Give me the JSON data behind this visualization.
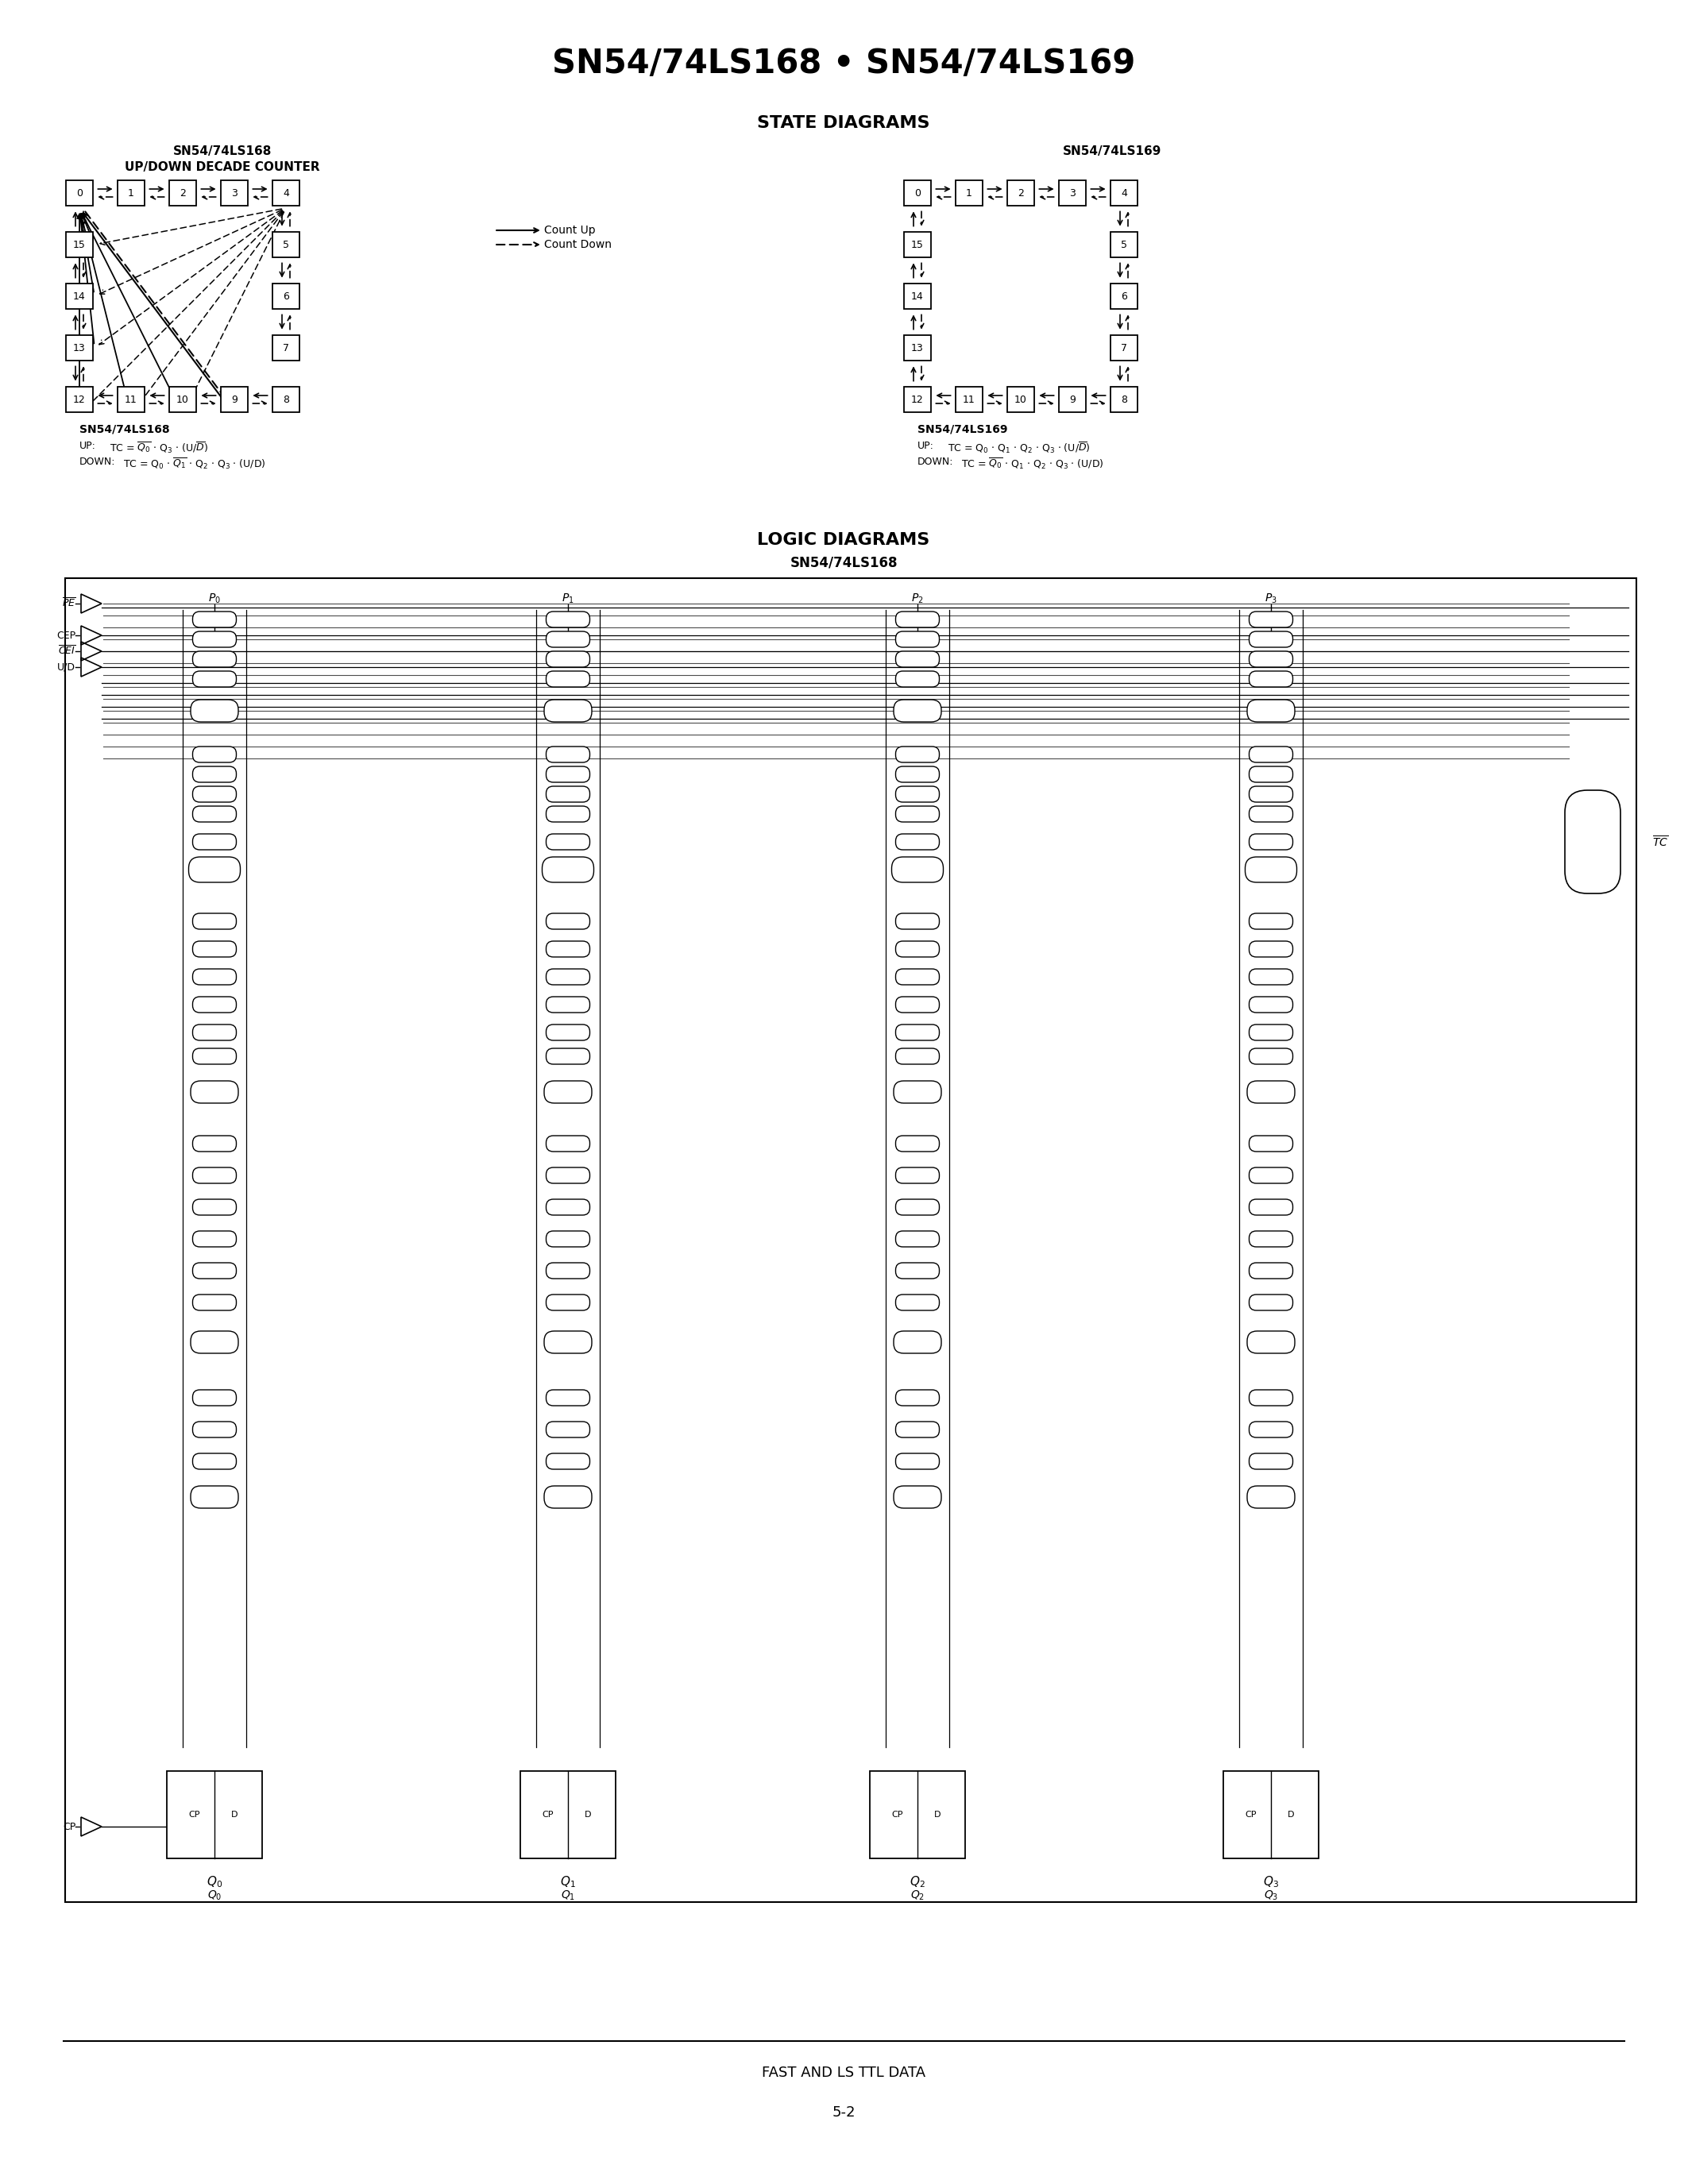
{
  "title": "SN54/74LS168 • SN54/74LS169",
  "state_diagrams_title": "STATE DIAGRAMS",
  "logic_diagrams_title": "LOGIC DIAGRAMS",
  "ls168_title_line1": "SN54/74LS168",
  "ls168_title_line2": "UP/DOWN DECADE COUNTER",
  "ls169_title": "SN54/74LS169",
  "ls168_logic_title": "SN54/74LS168",
  "footer_line": "FAST AND LS TTL DATA",
  "page_number": "5-2",
  "bg_color": "#ffffff"
}
